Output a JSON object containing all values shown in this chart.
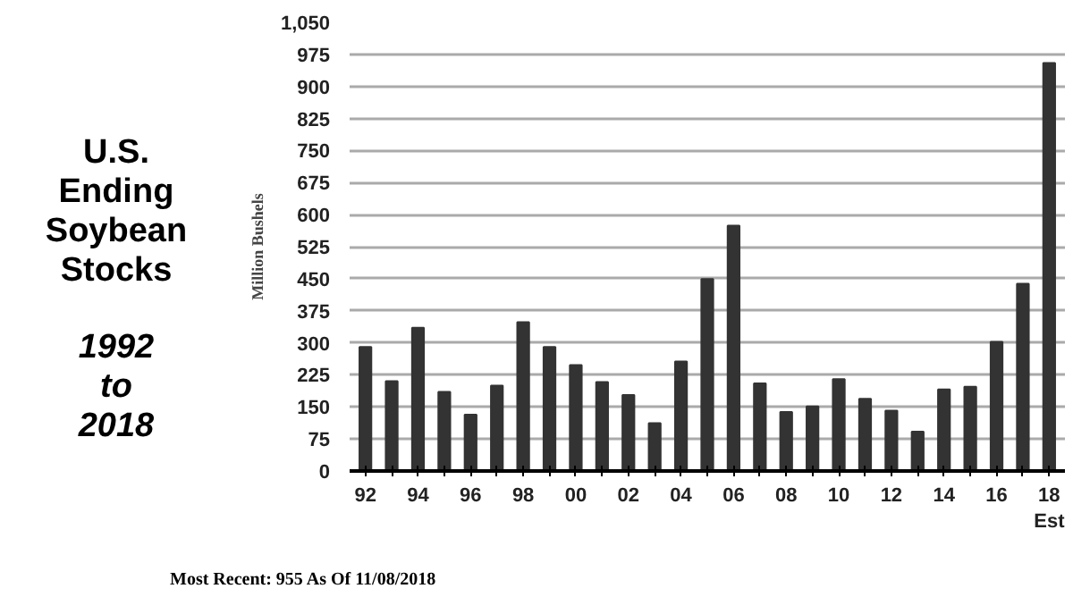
{
  "chart_data": {
    "type": "bar",
    "title": "U.S. Ending Soybean Stocks",
    "subtitle": "1992 to 2018",
    "ylabel": "Million Bushels",
    "annotations": [
      "Most Recent: 955 As Of 11/08/2018"
    ],
    "categories": [
      "92",
      null,
      "94",
      null,
      "96",
      null,
      "98",
      null,
      "00",
      null,
      "02",
      null,
      "04",
      null,
      "06",
      null,
      "08",
      null,
      "10",
      null,
      "12",
      null,
      "14",
      null,
      "16",
      null,
      "18\nEst"
    ],
    "values": [
      290,
      210,
      335,
      185,
      132,
      200,
      348,
      290,
      248,
      208,
      178,
      112,
      256,
      449,
      574,
      205,
      138,
      151,
      215,
      169,
      141,
      92,
      191,
      197,
      302,
      438,
      955
    ],
    "color": "#333333",
    "ylim": [
      0,
      1050
    ],
    "yticks": [
      0,
      75,
      150,
      225,
      300,
      375,
      450,
      525,
      600,
      675,
      750,
      825,
      900,
      975,
      {
        "value": 1050,
        "label": "1,050"
      }
    ],
    "grid": "y"
  }
}
